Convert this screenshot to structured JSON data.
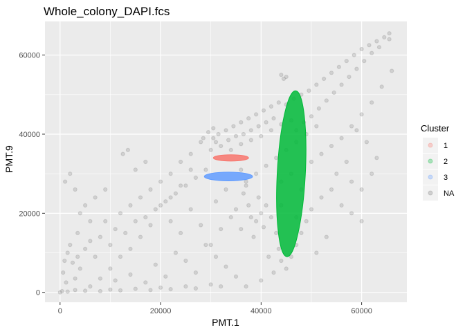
{
  "chart_data": {
    "type": "scatter",
    "title": "Whole_colony_DAPI.fcs",
    "xlabel": "PMT.1",
    "ylabel": "PMT.9",
    "xlim": [
      -3000,
      69000
    ],
    "ylim": [
      -2500,
      68500
    ],
    "x_ticks": [
      0,
      20000,
      40000,
      60000
    ],
    "y_ticks": [
      0,
      20000,
      40000,
      60000
    ],
    "x_tick_labels": [
      "0",
      "20000",
      "40000",
      "60000"
    ],
    "y_tick_labels": [
      "0",
      "20000",
      "40000",
      "60000"
    ],
    "grid": true,
    "legend": {
      "title": "Cluster",
      "position": "right",
      "entries": [
        {
          "label": "1",
          "color": "#F8766D"
        },
        {
          "label": "2",
          "color": "#00BA38"
        },
        {
          "label": "3",
          "color": "#619CFF"
        },
        {
          "label": "NA",
          "color": "#7F7F7F"
        }
      ]
    },
    "series": [
      {
        "name": "NA",
        "color": "#7F7F7F",
        "alpha": 0.25,
        "points": [
          [
            0,
            0
          ],
          [
            400,
            300
          ],
          [
            1500,
            200
          ],
          [
            3000,
            600
          ],
          [
            5000,
            400
          ],
          [
            8000,
            300
          ],
          [
            10000,
            700
          ],
          [
            12000,
            500
          ],
          [
            15000,
            900
          ],
          [
            18000,
            600
          ],
          [
            20000,
            1200
          ],
          [
            22000,
            800
          ],
          [
            25000,
            1500
          ],
          [
            27000,
            1000
          ],
          [
            30000,
            2000
          ],
          [
            32000,
            1500
          ],
          [
            600,
            5000
          ],
          [
            900,
            8000
          ],
          [
            1500,
            10000
          ],
          [
            2500,
            7500
          ],
          [
            3500,
            9000
          ],
          [
            4000,
            6000
          ],
          [
            2000,
            12000
          ],
          [
            3500,
            15000
          ],
          [
            5000,
            11000
          ],
          [
            6000,
            13000
          ],
          [
            7000,
            9000
          ],
          [
            8000,
            14000
          ],
          [
            9000,
            18000
          ],
          [
            10000,
            12000
          ],
          [
            11000,
            16000
          ],
          [
            12000,
            20000
          ],
          [
            13000,
            15000
          ],
          [
            14000,
            22000
          ],
          [
            15000,
            18000
          ],
          [
            16000,
            24000
          ],
          [
            17000,
            19000
          ],
          [
            18000,
            26000
          ],
          [
            19000,
            21000
          ],
          [
            20000,
            28000
          ],
          [
            21000,
            23000
          ],
          [
            22000,
            30000
          ],
          [
            23000,
            25000
          ],
          [
            24000,
            33000
          ],
          [
            25000,
            27000
          ],
          [
            26000,
            35000
          ],
          [
            27000,
            29000
          ],
          [
            28000,
            38000
          ],
          [
            29000,
            31000
          ],
          [
            30000,
            36000
          ],
          [
            30500,
            39000
          ],
          [
            31500,
            40000
          ],
          [
            33000,
            41000
          ],
          [
            34500,
            42000
          ],
          [
            36000,
            43000
          ],
          [
            37500,
            44000
          ],
          [
            39000,
            45000
          ],
          [
            40500,
            46000
          ],
          [
            42000,
            47000
          ],
          [
            43500,
            48000
          ],
          [
            45000,
            47500
          ],
          [
            46500,
            49000
          ],
          [
            48000,
            50000
          ],
          [
            49500,
            51000
          ],
          [
            51000,
            52500
          ],
          [
            52500,
            54000
          ],
          [
            54000,
            55500
          ],
          [
            55500,
            57000
          ],
          [
            57000,
            58500
          ],
          [
            58500,
            60000
          ],
          [
            60000,
            61500
          ],
          [
            61500,
            62500
          ],
          [
            63000,
            63500
          ],
          [
            64500,
            64500
          ],
          [
            65500,
            65500
          ],
          [
            65500,
            64000
          ],
          [
            63500,
            62000
          ],
          [
            62000,
            60500
          ],
          [
            60500,
            58500
          ],
          [
            59000,
            56500
          ],
          [
            57500,
            54500
          ],
          [
            56000,
            52500
          ],
          [
            54500,
            50500
          ],
          [
            53000,
            48500
          ],
          [
            51500,
            46500
          ],
          [
            50000,
            44500
          ],
          [
            48500,
            43000
          ],
          [
            47000,
            41000
          ],
          [
            44000,
            55000
          ],
          [
            45000,
            54500
          ],
          [
            44500,
            54000
          ],
          [
            32000,
            37000
          ],
          [
            33500,
            38500
          ],
          [
            35000,
            39500
          ],
          [
            36500,
            40000
          ],
          [
            38000,
            41000
          ],
          [
            39500,
            42000
          ],
          [
            41000,
            43000
          ],
          [
            42500,
            44000
          ],
          [
            28500,
            39000
          ],
          [
            29500,
            40500
          ],
          [
            30500,
            41500
          ],
          [
            31000,
            38000
          ],
          [
            34000,
            36000
          ],
          [
            36000,
            37500
          ],
          [
            38000,
            38500
          ],
          [
            40000,
            39500
          ],
          [
            42000,
            41000
          ],
          [
            44000,
            42500
          ],
          [
            46000,
            43500
          ],
          [
            36000,
            31000
          ],
          [
            37000,
            27000
          ],
          [
            37500,
            22000
          ],
          [
            38000,
            19000
          ],
          [
            39000,
            18000
          ],
          [
            40000,
            20000
          ],
          [
            39500,
            24000
          ],
          [
            36500,
            25000
          ],
          [
            35000,
            21000
          ],
          [
            36000,
            16000
          ],
          [
            38500,
            14000
          ],
          [
            40500,
            16500
          ],
          [
            41000,
            22000
          ],
          [
            42000,
            19000
          ],
          [
            43000,
            15000
          ],
          [
            43500,
            11000
          ],
          [
            44000,
            8000
          ],
          [
            45000,
            6000
          ],
          [
            46000,
            9000
          ],
          [
            47000,
            12000
          ],
          [
            48000,
            15000
          ],
          [
            49000,
            18000
          ],
          [
            50000,
            21000
          ],
          [
            52000,
            24000
          ],
          [
            54000,
            26000
          ],
          [
            56000,
            22000
          ],
          [
            58000,
            20000
          ],
          [
            60000,
            18000
          ],
          [
            53000,
            14000
          ],
          [
            51000,
            10000
          ],
          [
            41500,
            9000
          ],
          [
            42500,
            5000
          ],
          [
            40000,
            3000
          ],
          [
            37000,
            1500
          ],
          [
            35000,
            4000
          ],
          [
            33000,
            6500
          ],
          [
            31000,
            9000
          ],
          [
            29000,
            12000
          ],
          [
            27000,
            5000
          ],
          [
            25000,
            8000
          ],
          [
            23000,
            10000
          ],
          [
            21000,
            4000
          ],
          [
            19000,
            7000
          ],
          [
            17000,
            2500
          ],
          [
            14000,
            4500
          ],
          [
            11000,
            3000
          ],
          [
            6000,
            1500
          ],
          [
            3000,
            3500
          ],
          [
            1200,
            2500
          ],
          [
            50000,
            33000
          ],
          [
            52000,
            35000
          ],
          [
            54000,
            37000
          ],
          [
            56000,
            39000
          ],
          [
            58000,
            42000
          ],
          [
            60000,
            45000
          ],
          [
            62000,
            48000
          ],
          [
            64000,
            52000
          ],
          [
            66000,
            56000
          ],
          [
            26000,
            31000
          ],
          [
            24000,
            27000
          ],
          [
            22000,
            24000
          ],
          [
            20000,
            22000
          ],
          [
            18000,
            17000
          ],
          [
            16000,
            14000
          ],
          [
            14000,
            11000
          ],
          [
            12000,
            9000
          ],
          [
            10000,
            6000
          ],
          [
            8000,
            3500
          ],
          [
            31000,
            23000
          ],
          [
            33000,
            26000
          ],
          [
            34000,
            19000
          ],
          [
            32000,
            16000
          ],
          [
            30000,
            12000
          ],
          [
            28000,
            17000
          ],
          [
            26000,
            21000
          ],
          [
            24000,
            15000
          ],
          [
            22000,
            18000
          ],
          [
            47000,
            38000
          ],
          [
            49000,
            40000
          ],
          [
            51000,
            42000
          ],
          [
            45000,
            36000
          ],
          [
            43000,
            34000
          ],
          [
            41000,
            32000
          ],
          [
            39000,
            30000
          ],
          [
            37000,
            28000
          ],
          [
            44000,
            28000
          ],
          [
            46000,
            30000
          ],
          [
            48000,
            26000
          ],
          [
            44000,
            22000
          ],
          [
            47000,
            19000
          ],
          [
            58000,
            28000
          ],
          [
            60000,
            26000
          ],
          [
            62000,
            30000
          ],
          [
            63000,
            34000
          ],
          [
            61000,
            38000
          ],
          [
            59000,
            41000
          ],
          [
            57000,
            33000
          ],
          [
            55000,
            30000
          ],
          [
            5000,
            22000
          ],
          [
            7000,
            24000
          ],
          [
            9000,
            26000
          ],
          [
            4000,
            20000
          ],
          [
            6000,
            18000
          ],
          [
            3000,
            26000
          ],
          [
            2000,
            30000
          ],
          [
            1000,
            28000
          ],
          [
            12500,
            35000
          ],
          [
            13500,
            36000
          ],
          [
            15000,
            31000
          ],
          [
            17000,
            33000
          ]
        ]
      }
    ],
    "clusters": [
      {
        "label": "1",
        "color": "#F8766D",
        "shape": "ellipse",
        "center": [
          34000,
          34000
        ],
        "x_halfwidth": 3500,
        "y_halfwidth": 800
      },
      {
        "label": "3",
        "color": "#619CFF",
        "shape": "ellipse",
        "center": [
          33500,
          29300
        ],
        "x_halfwidth": 4800,
        "y_halfwidth": 1100
      },
      {
        "label": "2",
        "color": "#00BA38",
        "shape": "ellipse",
        "center": [
          46000,
          30000
        ],
        "x_halfwidth": 2800,
        "y_halfwidth": 21000
      }
    ]
  }
}
